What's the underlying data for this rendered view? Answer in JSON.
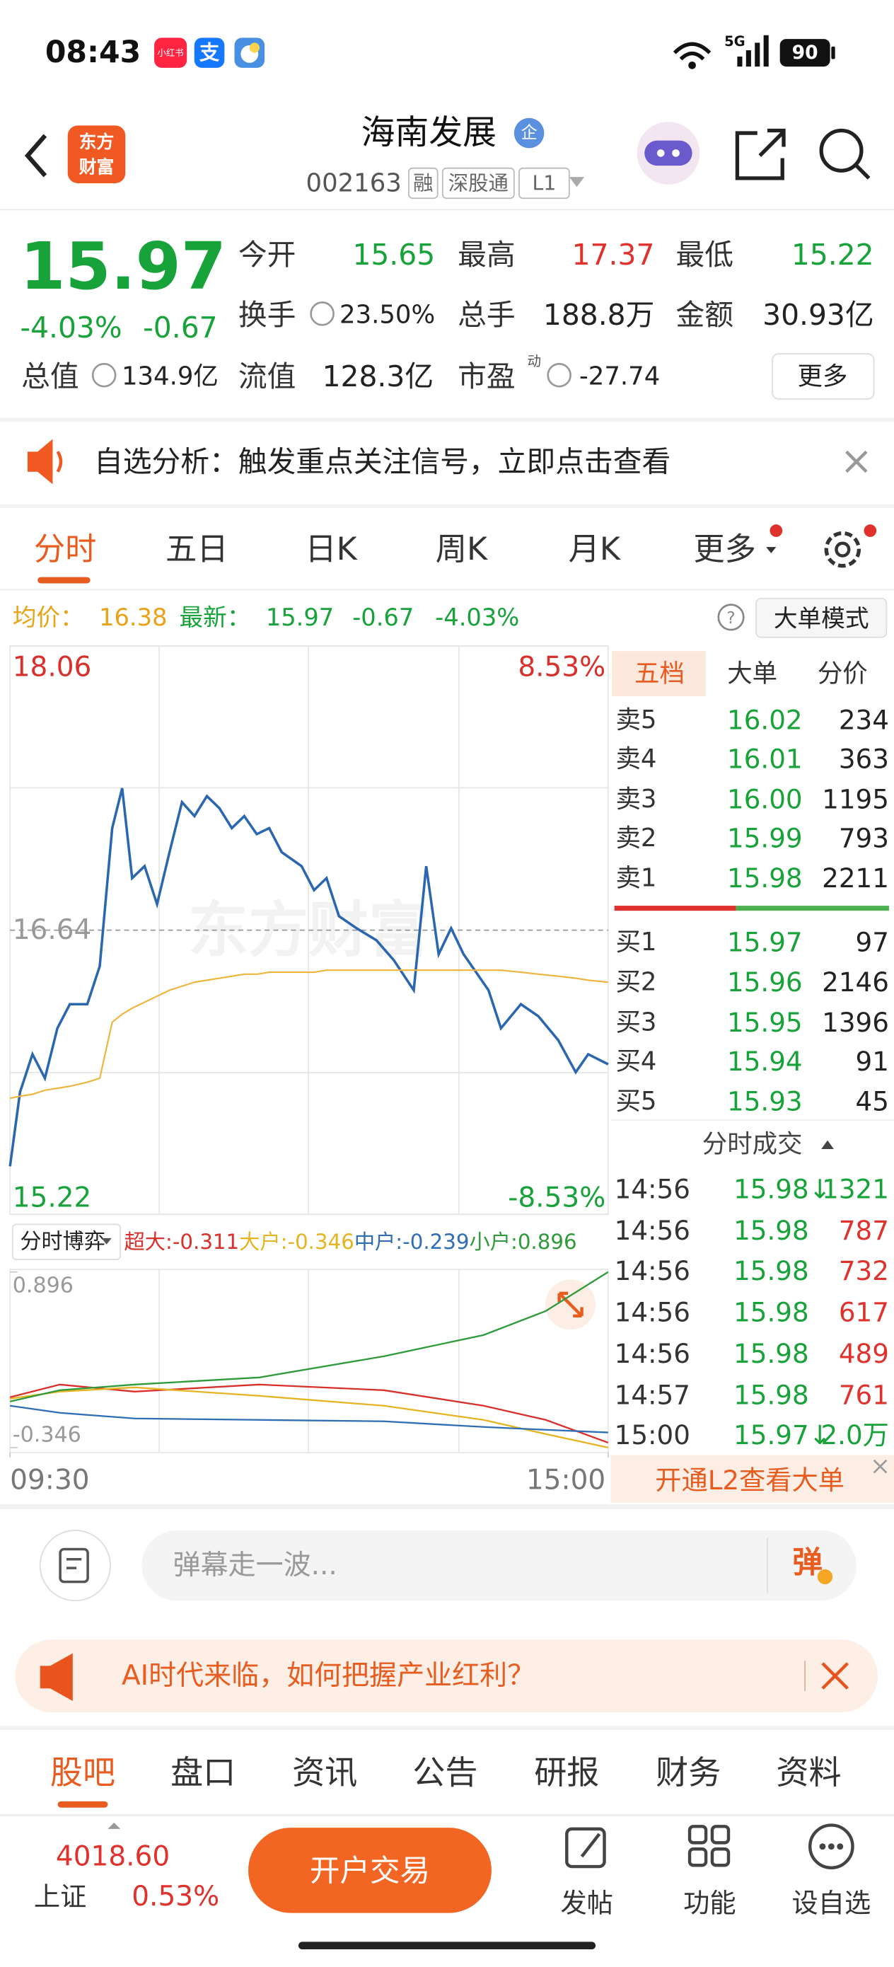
{
  "status_bar": {
    "time": "08:43",
    "app_icons": [
      "小红书",
      "支"
    ],
    "network": "5G",
    "battery": "90"
  },
  "header": {
    "logo": [
      "东方",
      "财富"
    ],
    "title": "海南发展",
    "badge": "企",
    "code": "002163",
    "tags": [
      "融",
      "深股通",
      "L1"
    ]
  },
  "quote": {
    "price": "15.97",
    "change_pct": "-4.03%",
    "change": "-0.67",
    "fields": [
      {
        "label": "今开",
        "value": "15.65",
        "color": "#18a23a"
      },
      {
        "label": "最高",
        "value": "17.37",
        "color": "#e0322d"
      },
      {
        "label": "最低",
        "value": "15.22",
        "color": "#18a23a"
      },
      {
        "label": "换手",
        "value": "23.50%",
        "color": "#222222"
      },
      {
        "label": "总手",
        "value": "188.8万",
        "color": "#222222"
      },
      {
        "label": "金额",
        "value": "30.93亿",
        "color": "#222222"
      }
    ],
    "fields2": [
      {
        "label": "总值",
        "value": "134.9亿"
      },
      {
        "label": "流值",
        "value": "128.3亿"
      },
      {
        "label": "市盈",
        "value": "-27.74"
      }
    ],
    "pe_tag": "动",
    "more": "更多"
  },
  "notice": "自选分析：触发重点关注信号，立即点击查看",
  "tabs": [
    "分时",
    "五日",
    "日K",
    "周K",
    "月K",
    "更多"
  ],
  "info_line": {
    "avg_label": "均价：",
    "avg": "16.38",
    "last_label": "最新：",
    "last": "15.97",
    "change": "-0.67",
    "change_pct": "-4.03%",
    "mode": "大单模式"
  },
  "chart_watermark": "东方财富",
  "chart_data": [
    {
      "type": "line",
      "xlim": [
        0,
        240
      ],
      "ylim": [
        15.22,
        18.06
      ],
      "yticks": [
        18.06,
        16.64,
        15.22
      ],
      "y2lim": [
        -8.53,
        8.53
      ],
      "y2ticks": [
        {
          "value": 8.53,
          "label": "8.53%"
        },
        {
          "value": -8.53,
          "label": "-8.53%"
        }
      ],
      "x": [
        0,
        4,
        9,
        14,
        19,
        24,
        31,
        36,
        41,
        45,
        49,
        54,
        59,
        64,
        69,
        74,
        79,
        84,
        89,
        94,
        99,
        104,
        109,
        117,
        122,
        127,
        132,
        139,
        147,
        154,
        162,
        167,
        172,
        177,
        182,
        187,
        192,
        197,
        205,
        212,
        220,
        227,
        232,
        240
      ],
      "series": [
        {
          "color": "#2b66b0",
          "values": [
            15.46,
            15.83,
            16.02,
            15.9,
            16.15,
            16.27,
            16.27,
            16.46,
            17.15,
            17.35,
            16.9,
            16.96,
            16.77,
            17.03,
            17.28,
            17.21,
            17.31,
            17.25,
            17.15,
            17.21,
            17.12,
            17.15,
            17.03,
            16.96,
            16.84,
            16.9,
            16.71,
            16.65,
            16.59,
            16.49,
            16.34,
            16.96,
            16.52,
            16.65,
            16.52,
            16.43,
            16.34,
            16.15,
            16.27,
            16.21,
            16.09,
            15.93,
            16.02,
            15.97
          ]
        },
        {
          "color": "#f0b43a",
          "values": [
            15.8,
            15.81,
            15.82,
            15.84,
            15.85,
            15.86,
            15.88,
            15.9,
            16.18,
            16.22,
            16.25,
            16.28,
            16.31,
            16.34,
            16.36,
            16.38,
            16.39,
            16.4,
            16.41,
            16.42,
            16.42,
            16.43,
            16.43,
            16.43,
            16.43,
            16.44,
            16.44,
            16.44,
            16.44,
            16.44,
            16.44,
            16.44,
            16.44,
            16.44,
            16.44,
            16.44,
            16.44,
            16.44,
            16.43,
            16.42,
            16.41,
            16.4,
            16.39,
            16.38
          ]
        }
      ]
    },
    {
      "type": "line",
      "title": "分时博弈",
      "xlim": [
        0,
        240
      ],
      "ylim": [
        -0.346,
        0.896
      ],
      "yticks": [
        0.896,
        -0.346
      ],
      "xticks": [
        {
          "value": 0,
          "label": "09:30"
        },
        {
          "value": 240,
          "label": "15:00"
        }
      ],
      "x": [
        0,
        20,
        50,
        100,
        150,
        190,
        215,
        240
      ],
      "series": [
        {
          "name": "超大:-0.311",
          "color": "#d9302c",
          "values": [
            0.01,
            0.1,
            0.05,
            0.1,
            0.06,
            -0.05,
            -0.15,
            -0.311
          ]
        },
        {
          "name": "大户:-0.346",
          "color": "#e5b420",
          "values": [
            0.0,
            0.05,
            0.08,
            0.02,
            -0.05,
            -0.15,
            -0.25,
            -0.346
          ]
        },
        {
          "name": "中户:-0.239",
          "color": "#2f6db5",
          "values": [
            -0.05,
            -0.1,
            -0.14,
            -0.15,
            -0.16,
            -0.2,
            -0.22,
            -0.239
          ]
        },
        {
          "name": "小户:0.896",
          "color": "#2e9a3a",
          "values": [
            -0.02,
            0.06,
            0.1,
            0.15,
            0.3,
            0.45,
            0.62,
            0.896
          ]
        }
      ]
    }
  ],
  "order_book": {
    "tabs": [
      "五档",
      "大单",
      "分价"
    ],
    "asks": [
      [
        "卖5",
        "16.02",
        "234"
      ],
      [
        "卖4",
        "16.01",
        "363"
      ],
      [
        "卖3",
        "16.00",
        "1195"
      ],
      [
        "卖2",
        "15.99",
        "793"
      ],
      [
        "卖1",
        "15.98",
        "2211"
      ]
    ],
    "bids": [
      [
        "买1",
        "15.97",
        "97"
      ],
      [
        "买2",
        "15.96",
        "2146"
      ],
      [
        "买3",
        "15.95",
        "1396"
      ],
      [
        "买4",
        "15.94",
        "91"
      ],
      [
        "买5",
        "15.93",
        "45"
      ]
    ]
  },
  "trades": {
    "title": "分时成交",
    "rows": [
      {
        "time": "14:56",
        "price": "15.98↓",
        "volume": "1321",
        "volume_color": "#18a23a"
      },
      {
        "time": "14:56",
        "price": "15.98",
        "volume": "787",
        "volume_color": "#e0322d"
      },
      {
        "time": "14:56",
        "price": "15.98",
        "volume": "732",
        "volume_color": "#e0322d"
      },
      {
        "time": "14:56",
        "price": "15.98",
        "volume": "617",
        "volume_color": "#e0322d"
      },
      {
        "time": "14:56",
        "price": "15.98",
        "volume": "489",
        "volume_color": "#e0322d"
      },
      {
        "time": "14:57",
        "price": "15.98",
        "volume": "761",
        "volume_color": "#e0322d"
      },
      {
        "time": "15:00",
        "price": "15.97↓",
        "volume": "2.0万",
        "volume_color": "#18a23a"
      }
    ]
  },
  "l2_banner": "开通L2查看大单",
  "comment": {
    "placeholder": "弹幕走一波...",
    "button": "弹"
  },
  "ad": "AI时代来临，如何把握产业红利？",
  "bottom_tabs": [
    "股吧",
    "盘口",
    "资讯",
    "公告",
    "研报",
    "财务",
    "资料"
  ],
  "footer": {
    "index_value": "4018.60",
    "index_name": "上证",
    "index_change": "0.53%",
    "button": "开户交易",
    "actions": [
      "发帖",
      "功能",
      "设自选"
    ]
  }
}
